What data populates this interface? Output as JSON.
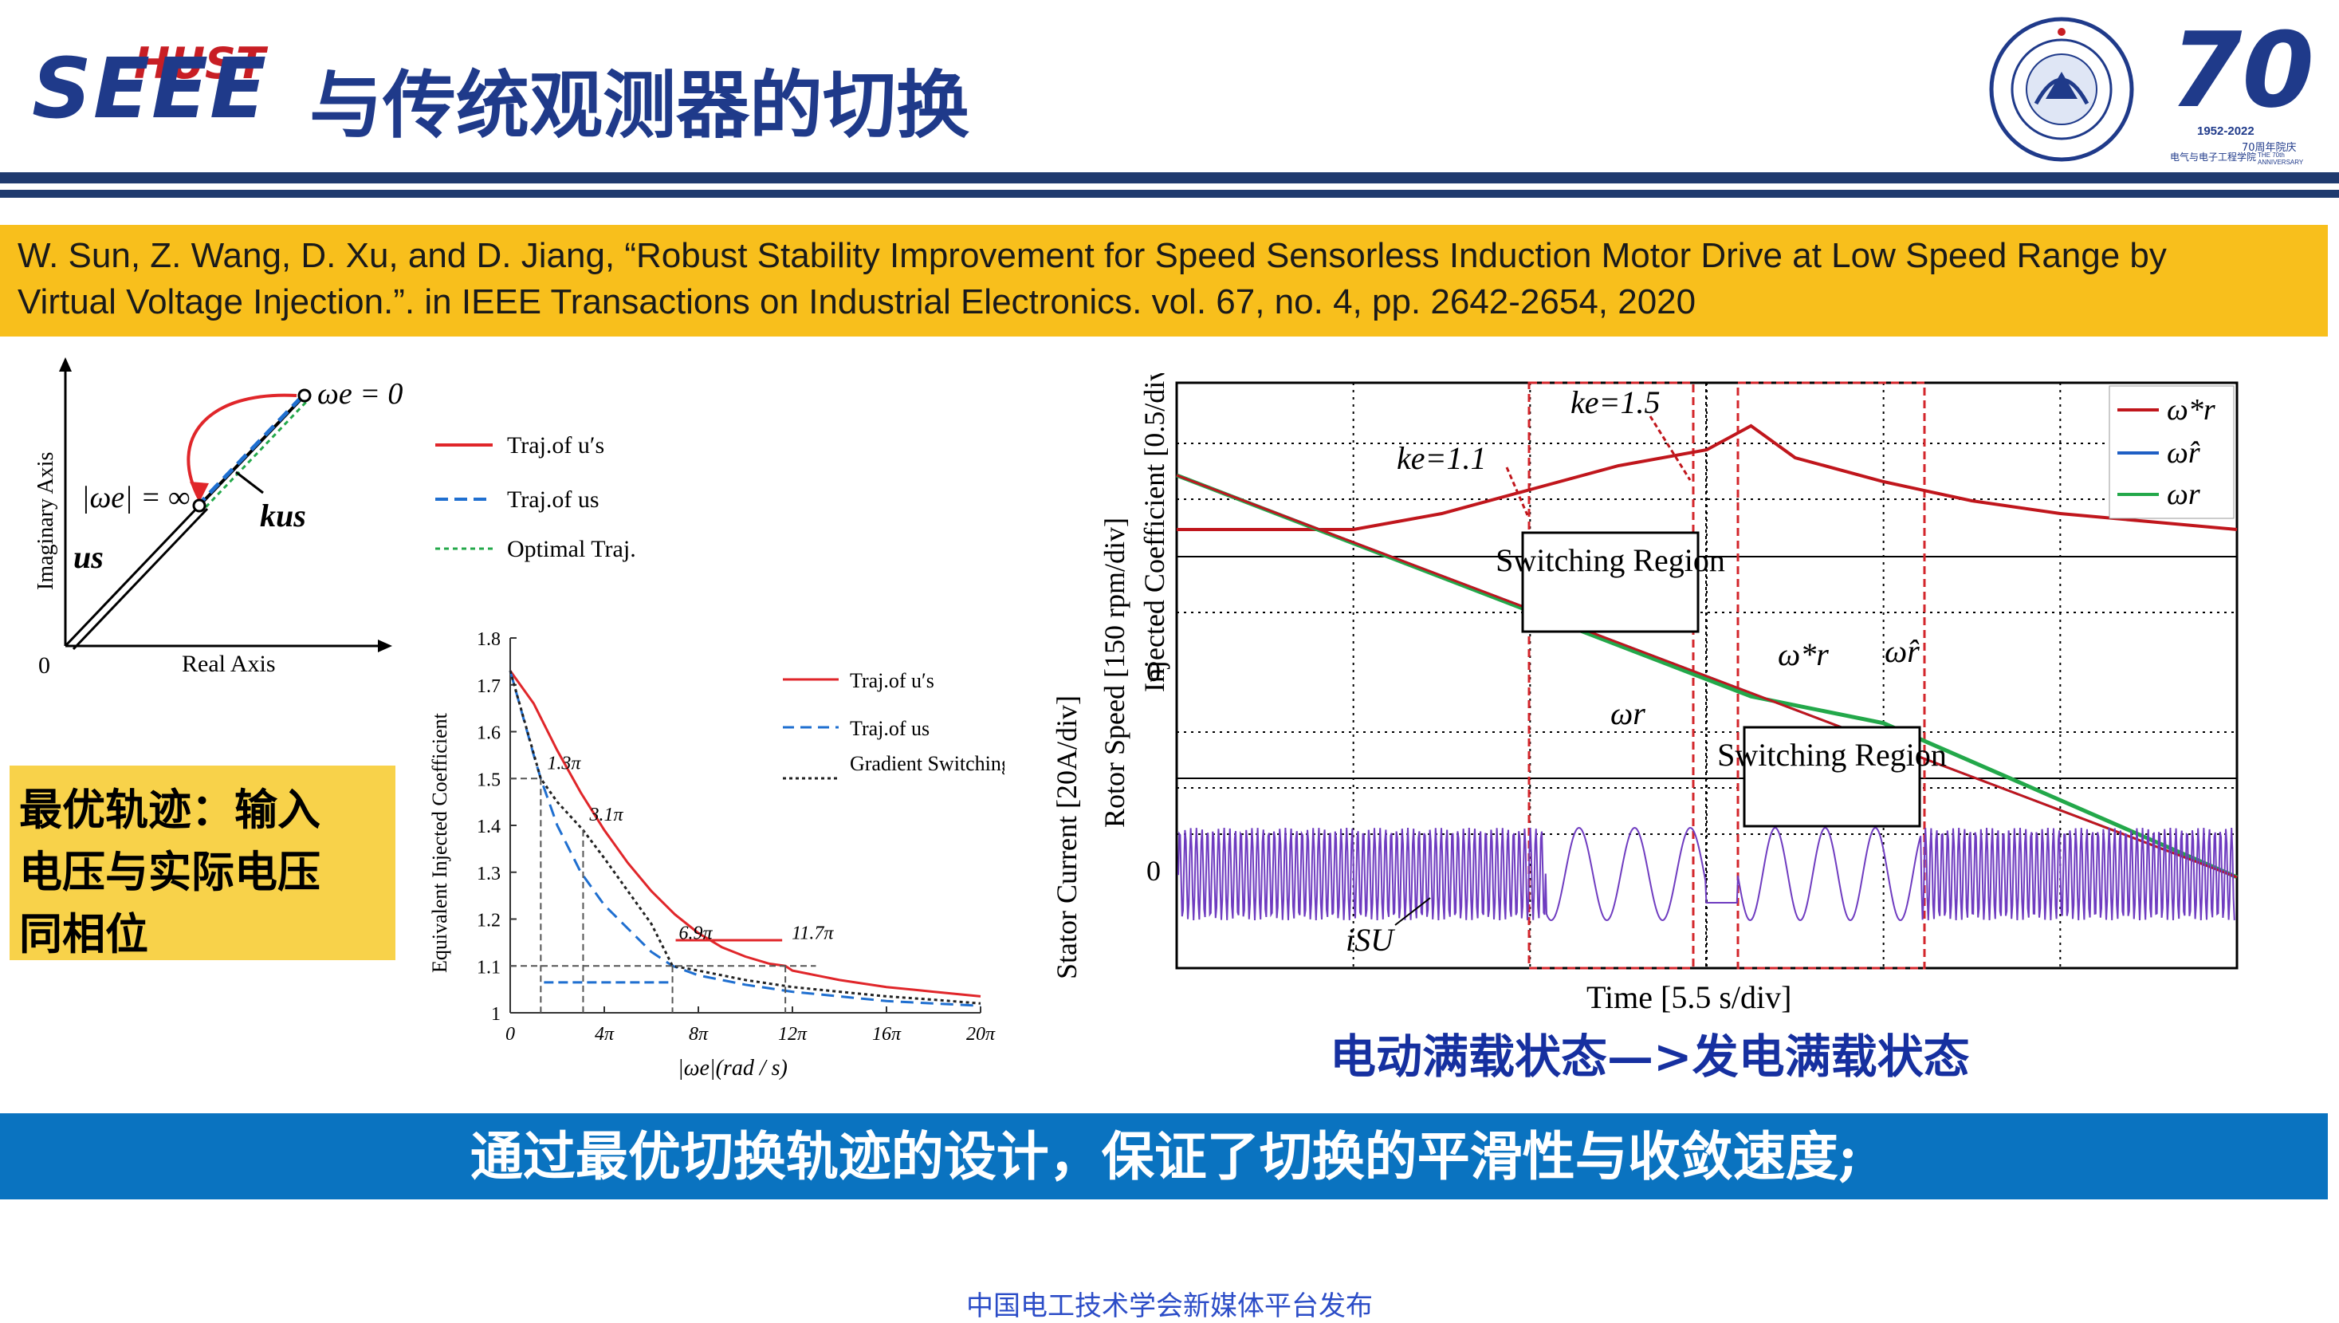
{
  "header": {
    "logo_top": "HUST",
    "logo_bottom": "SEEE",
    "title": "与传统观测器的切换",
    "seal_text": "School of Electrical and Electronic Engineering",
    "anniversary_number": "70",
    "anniversary_years": "1952-2022",
    "anniversary_cn": "70周年院庆",
    "anniversary_school": "电气与电子工程学院",
    "anniversary_en": "THE 70th ANNIVERSARY"
  },
  "reference": {
    "line1": "W. Sun, Z. Wang, D. Xu, and D. Jiang, “Robust Stability Improvement for Speed Sensorless Induction Motor Drive at Low Speed Range by",
    "line2": "Virtual Voltage Injection.”. in IEEE Transactions on Industrial Electronics. vol. 67, no. 4, pp. 2642-2654, 2020"
  },
  "vector_diagram": {
    "y_axis": "Imaginary Axis",
    "x_axis": "Real Axis",
    "origin": "0",
    "omega_e_zero": "ωe = 0",
    "omega_e_inf": "|ωe| = ∞",
    "k_us": "kus",
    "us": "us",
    "legend": [
      "Traj.of u′s",
      "Traj.of us",
      "Optimal Traj."
    ]
  },
  "note_box": {
    "line1": "最优轨迹：输入",
    "line2": "电压与实际电压",
    "line3": "同相位"
  },
  "chart_data": [
    {
      "type": "line",
      "ylabel": "Equivalent Injected Coefficient",
      "xlabel": "|ωe|(rad / s)",
      "x_ticks": [
        "0",
        "4π",
        "8π",
        "12π",
        "16π",
        "20π"
      ],
      "y_ticks": [
        "1",
        "1.1",
        "1.2",
        "1.3",
        "1.4",
        "1.5",
        "1.6",
        "1.7",
        "1.8"
      ],
      "xlim": [
        0,
        20
      ],
      "ylim": [
        1.0,
        1.8
      ],
      "annotations": [
        "1.3π",
        "3.1π",
        "6.9π",
        "11.7π"
      ],
      "legend_position": "top-right",
      "series": [
        {
          "name": "Traj.of u′s",
          "color": "#e0262a",
          "style": "solid",
          "x": [
            0,
            1,
            2,
            3,
            4,
            5,
            6,
            7,
            8,
            9,
            10,
            11,
            11.7,
            12,
            14,
            16,
            18,
            20
          ],
          "y": [
            1.73,
            1.66,
            1.56,
            1.47,
            1.39,
            1.32,
            1.26,
            1.21,
            1.17,
            1.14,
            1.12,
            1.105,
            1.1,
            1.09,
            1.07,
            1.055,
            1.045,
            1.035
          ]
        },
        {
          "name": "Traj.of us",
          "color": "#1f6fd0",
          "style": "dashed",
          "x": [
            0,
            1,
            1.3,
            2,
            3,
            4,
            5,
            6,
            6.9,
            8,
            10,
            12,
            14,
            16,
            18,
            20
          ],
          "y": [
            1.73,
            1.55,
            1.5,
            1.4,
            1.3,
            1.23,
            1.18,
            1.13,
            1.1,
            1.08,
            1.06,
            1.045,
            1.035,
            1.025,
            1.02,
            1.015
          ]
        },
        {
          "name": "Gradient Switching",
          "color": "#222222",
          "style": "dotted",
          "x": [
            0,
            1.3,
            2,
            3.1,
            4,
            5,
            6,
            6.9,
            8,
            10,
            12,
            14,
            16,
            18,
            20
          ],
          "y": [
            1.73,
            1.5,
            1.45,
            1.39,
            1.33,
            1.26,
            1.19,
            1.1,
            1.09,
            1.07,
            1.055,
            1.045,
            1.035,
            1.028,
            1.02
          ]
        }
      ]
    },
    {
      "type": "line",
      "title": "",
      "xlabel": "Time [5.5 s/div]",
      "panels": [
        {
          "ylabel": "Injected Coefficient [0.5/div]",
          "annotations": [
            "ke=1.1",
            "ke=1.5"
          ],
          "series": [
            {
              "name": "Injected Coefficient",
              "color": "#c0161c",
              "x": [
                0,
                1,
                2,
                3,
                4,
                5,
                6,
                6.5,
                7,
                8,
                9,
                10,
                11,
                12
              ],
              "y": [
                1.0,
                1.0,
                1.0,
                1.1,
                1.25,
                1.4,
                1.5,
                1.65,
                1.45,
                1.3,
                1.18,
                1.1,
                1.05,
                1.0
              ]
            }
          ]
        },
        {
          "ylabel": "Rotor Speed [150 rpm/div]",
          "zero_label": "0",
          "annotations": [
            "ω*r",
            "ω̂r",
            "ωr"
          ],
          "series": [
            {
              "name": "ω*r",
              "color": "#c0161c",
              "x": [
                0,
                12
              ],
              "y": [
                300,
                -300
              ]
            },
            {
              "name": "ω̂r",
              "color": "#1f5fc4",
              "x": [
                0,
                12
              ],
              "y": [
                300,
                -300
              ]
            },
            {
              "name": "ωr",
              "color": "#23a84a",
              "x": [
                0,
                6.5,
                8,
                12
              ],
              "y": [
                300,
                -30,
                -70,
                -300
              ]
            }
          ]
        },
        {
          "ylabel": "Stator Current [20A/div]",
          "zero_label": "0",
          "annotation": "iSU",
          "series": [
            {
              "name": "iSU",
              "color": "#6f3cc0"
            }
          ]
        }
      ],
      "regions": [
        "Switching Region",
        "Switching Region"
      ],
      "legend": [
        "ω*r",
        "ω̂r",
        "ωr"
      ],
      "legend_position": "top-right"
    }
  ],
  "caption": "电动满载状态—>发电满载状态",
  "banner": "通过最优切换轨迹的设计，保证了切换的平滑性与收敛速度;",
  "footer": "中国电工技术学会新媒体平台发布"
}
